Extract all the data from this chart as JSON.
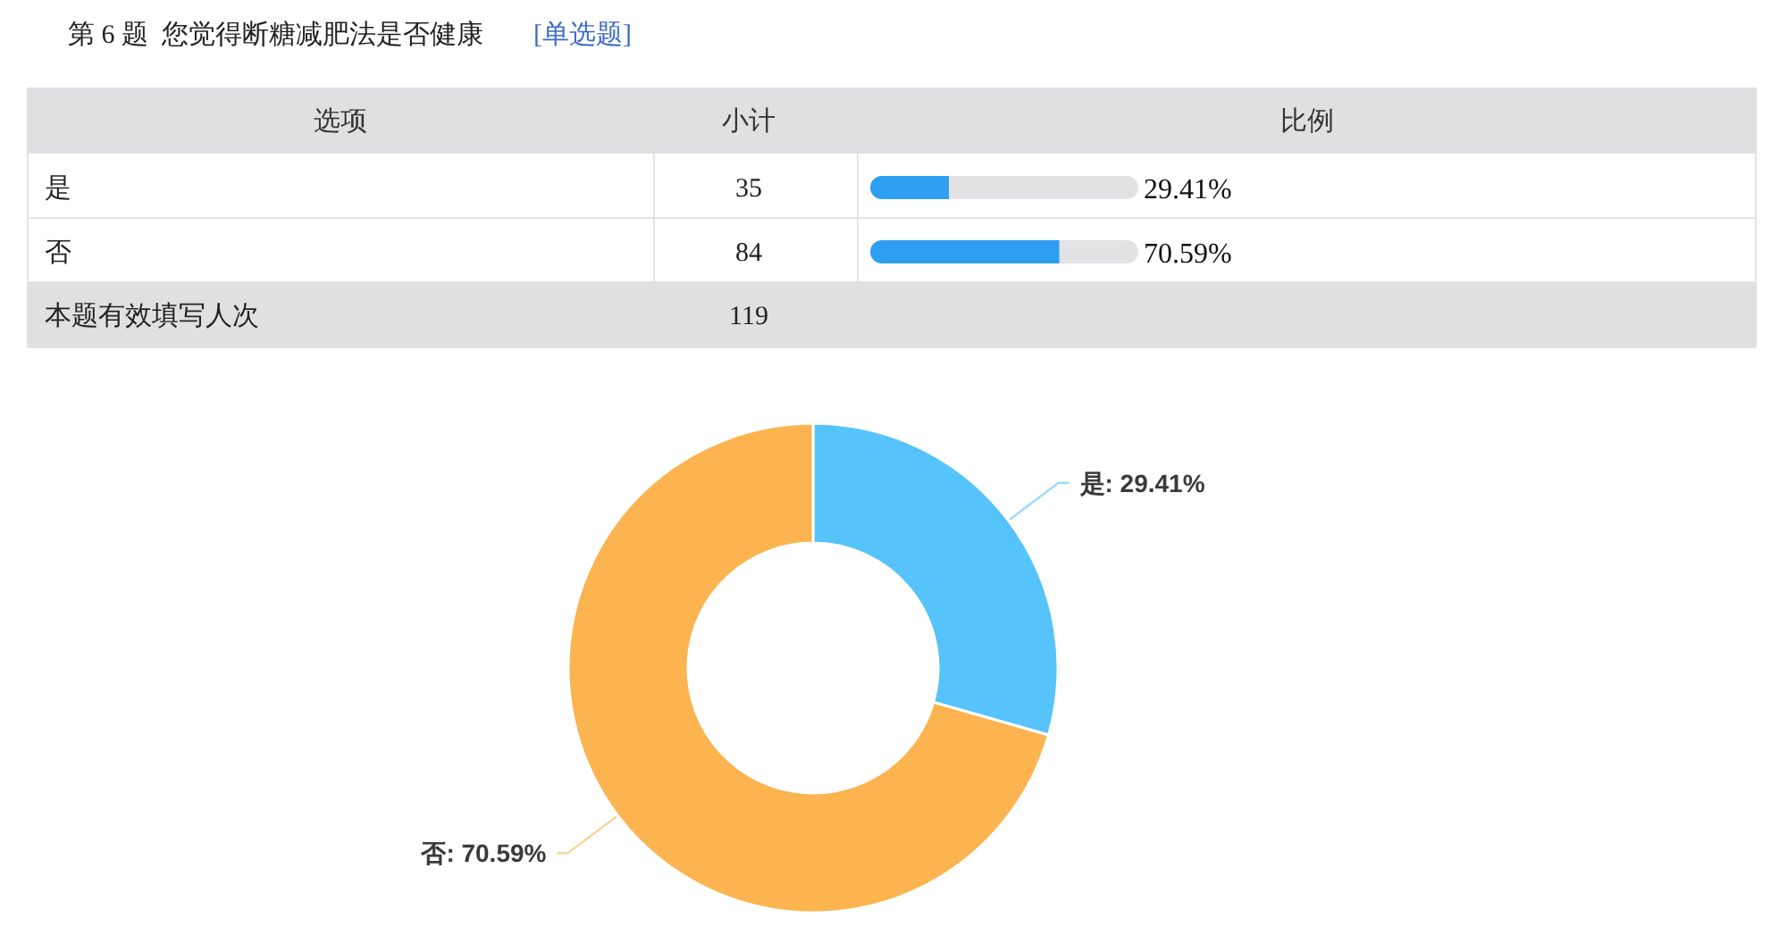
{
  "chart_data": [
    {
      "type": "bar",
      "orientation": "horizontal",
      "stacked": true,
      "title": "第 6 题  您觉得断糖减肥法是否健康",
      "subtitle": "[单选题]",
      "categories": [
        "是",
        "否"
      ],
      "xlim": [
        0,
        100
      ],
      "tick_labels": "y",
      "series": [
        {
          "color": "#2e9ef0",
          "values": [
            29.41,
            70.59
          ],
          "value_labels": [
            "29.41%",
            "70.59%"
          ]
        },
        {
          "color": "#e2e2e4",
          "values": [
            70.59,
            29.41
          ]
        }
      ],
      "annotations": [
        "选项",
        "小计",
        "比例",
        "35",
        "84"
      ]
    },
    {
      "type": "other",
      "annotations": [
        "本题有效填写人次",
        "119"
      ]
    },
    {
      "type": "donut",
      "categories": [
        "是",
        "否"
      ],
      "values": [
        29.41,
        70.59
      ],
      "colors": [
        "#56c3fb",
        "#fbb44f"
      ],
      "value_labels": [
        ": 29.41%",
        ": 70.59%"
      ]
    }
  ]
}
